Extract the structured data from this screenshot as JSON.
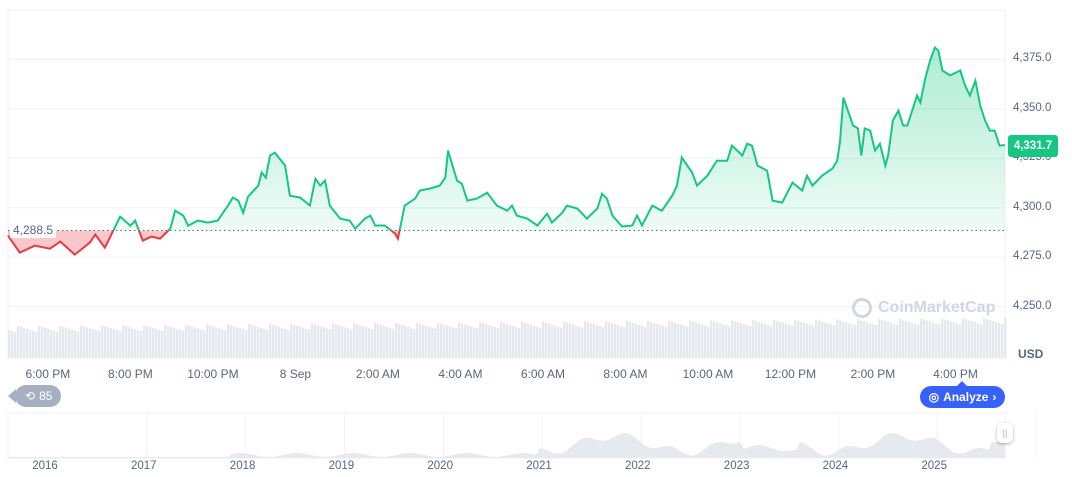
{
  "chart_data": {
    "type": "line",
    "currency": "USD",
    "current_price_label": "4,331.7",
    "baseline_label": "4,288.5",
    "baseline": 4288.5,
    "ylim": [
      4224,
      4400
    ],
    "y_ticks": [
      "4,250.0",
      "4,275.0",
      "4,300.0",
      "4,325.0",
      "4,350.0",
      "4,375.0"
    ],
    "y_tick_values": [
      4250,
      4275,
      4300,
      4325,
      4350,
      4375
    ],
    "x_range": [
      "17:02",
      "17:12"
    ],
    "x_ticks": [
      {
        "label": "6:00 PM",
        "t": "18:00"
      },
      {
        "label": "8:00 PM",
        "t": "20:00"
      },
      {
        "label": "10:00 PM",
        "t": "22:00"
      },
      {
        "label": "8 Sep",
        "t": "24:00"
      },
      {
        "label": "2:00 AM",
        "t": "26:00"
      },
      {
        "label": "4:00 AM",
        "t": "28:00"
      },
      {
        "label": "6:00 AM",
        "t": "30:00"
      },
      {
        "label": "8:00 AM",
        "t": "32:00"
      },
      {
        "label": "10:00 AM",
        "t": "34:00"
      },
      {
        "label": "12:00 PM",
        "t": "36:00"
      },
      {
        "label": "2:00 PM",
        "t": "38:00"
      },
      {
        "label": "4:00 PM",
        "t": "40:00"
      }
    ],
    "grid": true,
    "colors": {
      "up": "#16c784",
      "down": "#ea3943"
    },
    "points": [
      [
        "17:02",
        4285.9
      ],
      [
        "17:19",
        4277.3
      ],
      [
        "17:41",
        4280.8
      ],
      [
        "18:03",
        4279.3
      ],
      [
        "18:18",
        4282.9
      ],
      [
        "18:39",
        4276.3
      ],
      [
        "19:01",
        4282.3
      ],
      [
        "19:09",
        4286.4
      ],
      [
        "19:23",
        4279.8
      ],
      [
        "19:45",
        4295.5
      ],
      [
        "20:00",
        4290.9
      ],
      [
        "20:07",
        4293.5
      ],
      [
        "20:18",
        4283.4
      ],
      [
        "20:31",
        4285.4
      ],
      [
        "20:43",
        4284.4
      ],
      [
        "20:58",
        4289.4
      ],
      [
        "21:05",
        4298.5
      ],
      [
        "21:17",
        4296.0
      ],
      [
        "21:24",
        4290.9
      ],
      [
        "21:38",
        4293.5
      ],
      [
        "21:53",
        4292.5
      ],
      [
        "22:07",
        4293.5
      ],
      [
        "22:22",
        4301.1
      ],
      [
        "22:29",
        4305.1
      ],
      [
        "22:37",
        4303.6
      ],
      [
        "22:44",
        4297.5
      ],
      [
        "22:51",
        4305.6
      ],
      [
        "23:06",
        4311.2
      ],
      [
        "23:11",
        4317.8
      ],
      [
        "23:17",
        4315.2
      ],
      [
        "23:23",
        4326.4
      ],
      [
        "23:30",
        4327.9
      ],
      [
        "23:45",
        4321.3
      ],
      [
        "23:52",
        4306.1
      ],
      [
        "00:07",
        4305.1
      ],
      [
        "00:21",
        4301.1
      ],
      [
        "00:29",
        4314.7
      ],
      [
        "00:36",
        4311.2
      ],
      [
        "00:43",
        4313.7
      ],
      [
        "00:50",
        4301.1
      ],
      [
        "01:05",
        4294.5
      ],
      [
        "01:19",
        4293.5
      ],
      [
        "01:27",
        4289.4
      ],
      [
        "01:41",
        4294.5
      ],
      [
        "01:49",
        4296.0
      ],
      [
        "01:56",
        4291.0
      ],
      [
        "02:10",
        4291.0
      ],
      [
        "02:25",
        4286.9
      ],
      [
        "02:29",
        4284.4
      ],
      [
        "02:39",
        4301.1
      ],
      [
        "02:54",
        4304.6
      ],
      [
        "03:01",
        4308.7
      ],
      [
        "03:16",
        4309.7
      ],
      [
        "03:30",
        4311.2
      ],
      [
        "03:38",
        4315.2
      ],
      [
        "03:42",
        4328.9
      ],
      [
        "03:55",
        4313.7
      ],
      [
        "04:02",
        4312.2
      ],
      [
        "04:10",
        4303.6
      ],
      [
        "04:24",
        4304.6
      ],
      [
        "04:39",
        4307.6
      ],
      [
        "04:53",
        4301.1
      ],
      [
        "05:08",
        4298.5
      ],
      [
        "05:15",
        4301.1
      ],
      [
        "05:22",
        4296.0
      ],
      [
        "05:37",
        4294.5
      ],
      [
        "05:52",
        4291.0
      ],
      [
        "06:06",
        4297.0
      ],
      [
        "06:13",
        4292.5
      ],
      [
        "06:28",
        4297.5
      ],
      [
        "06:35",
        4301.1
      ],
      [
        "06:50",
        4299.6
      ],
      [
        "07:04",
        4294.5
      ],
      [
        "07:19",
        4299.6
      ],
      [
        "07:26",
        4307.1
      ],
      [
        "07:33",
        4304.6
      ],
      [
        "07:41",
        4296.0
      ],
      [
        "07:55",
        4290.5
      ],
      [
        "08:10",
        4291.0
      ],
      [
        "08:17",
        4296.0
      ],
      [
        "08:24",
        4291.0
      ],
      [
        "08:39",
        4301.1
      ],
      [
        "08:53",
        4298.5
      ],
      [
        "09:08",
        4306.1
      ],
      [
        "09:15",
        4311.2
      ],
      [
        "09:22",
        4325.4
      ],
      [
        "09:37",
        4317.8
      ],
      [
        "09:44",
        4311.2
      ],
      [
        "09:59",
        4316.2
      ],
      [
        "10:13",
        4323.8
      ],
      [
        "10:28",
        4323.8
      ],
      [
        "10:35",
        4331.4
      ],
      [
        "10:50",
        4326.4
      ],
      [
        "10:57",
        4332.4
      ],
      [
        "11:04",
        4331.4
      ],
      [
        "11:12",
        4321.3
      ],
      [
        "11:26",
        4318.8
      ],
      [
        "11:34",
        4303.6
      ],
      [
        "11:48",
        4302.6
      ],
      [
        "12:03",
        4312.7
      ],
      [
        "12:17",
        4308.7
      ],
      [
        "12:24",
        4316.2
      ],
      [
        "12:32",
        4311.2
      ],
      [
        "12:46",
        4316.2
      ],
      [
        "13:01",
        4319.8
      ],
      [
        "13:08",
        4323.8
      ],
      [
        "13:12",
        4333.4
      ],
      [
        "13:17",
        4355.7
      ],
      [
        "13:31",
        4341.6
      ],
      [
        "13:38",
        4340.1
      ],
      [
        "13:43",
        4326.4
      ],
      [
        "13:48",
        4340.1
      ],
      [
        "13:56",
        4339.0
      ],
      [
        "14:03",
        4328.9
      ],
      [
        "14:10",
        4332.4
      ],
      [
        "14:18",
        4321.3
      ],
      [
        "14:22",
        4326.4
      ],
      [
        "14:29",
        4344.1
      ],
      [
        "14:37",
        4349.1
      ],
      [
        "14:44",
        4341.6
      ],
      [
        "14:50",
        4341.6
      ],
      [
        "14:57",
        4349.1
      ],
      [
        "15:04",
        4356.7
      ],
      [
        "15:09",
        4353.2
      ],
      [
        "15:16",
        4365.3
      ],
      [
        "15:23",
        4374.4
      ],
      [
        "15:30",
        4381.0
      ],
      [
        "15:35",
        4379.5
      ],
      [
        "15:41",
        4369.4
      ],
      [
        "15:52",
        4366.9
      ],
      [
        "16:07",
        4369.4
      ],
      [
        "16:14",
        4361.8
      ],
      [
        "16:21",
        4356.7
      ],
      [
        "16:29",
        4364.3
      ],
      [
        "16:36",
        4351.7
      ],
      [
        "16:43",
        4344.1
      ],
      [
        "16:50",
        4339.0
      ],
      [
        "16:57",
        4339.0
      ],
      [
        "17:04",
        4331.4
      ],
      [
        "17:12",
        4331.7
      ]
    ],
    "navigator_years": [
      "2016",
      "2017",
      "2018",
      "2019",
      "2020",
      "2021",
      "2022",
      "2023",
      "2024",
      "2025"
    ]
  },
  "watermark": "CoinMarketCap",
  "history_badge": "85",
  "analyze_label": "Analyze",
  "analyze_chevron": "›",
  "handle_glyph": "||"
}
